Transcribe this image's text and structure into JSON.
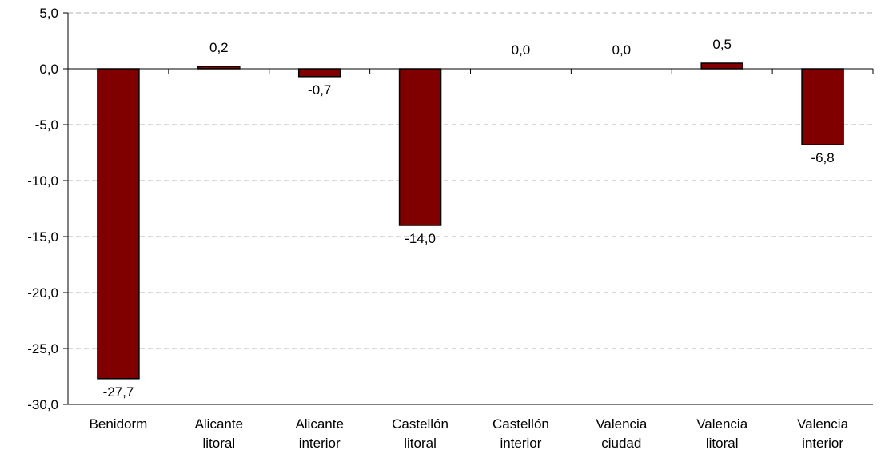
{
  "chart_data": {
    "type": "bar",
    "categories": [
      [
        "Benidorm"
      ],
      [
        "Alicante",
        "litoral"
      ],
      [
        "Alicante",
        "interior"
      ],
      [
        "Castellón",
        "litoral"
      ],
      [
        "Castellón",
        "interior"
      ],
      [
        "Valencia",
        "ciudad"
      ],
      [
        "Valencia",
        "litoral"
      ],
      [
        "Valencia",
        "interior"
      ]
    ],
    "values": [
      -27.7,
      0.2,
      -0.7,
      -14.0,
      0.0,
      0.0,
      0.5,
      -6.8
    ],
    "data_labels": [
      "-27,7",
      "0,2",
      "-0,7",
      "-14,0",
      "0,0",
      "0,0",
      "0,5",
      "-6,8"
    ],
    "ylim": [
      -30,
      5
    ],
    "yticks": [
      5,
      0,
      -5,
      -10,
      -15,
      -20,
      -25,
      -30
    ],
    "ytick_labels": [
      "5,0",
      "0,0",
      "-5,0",
      "-10,0",
      "-15,0",
      "-20,0",
      "-25,0",
      "-30,0"
    ],
    "grid": true,
    "bar_color": "#800000",
    "title": "",
    "xlabel": "",
    "ylabel": ""
  }
}
